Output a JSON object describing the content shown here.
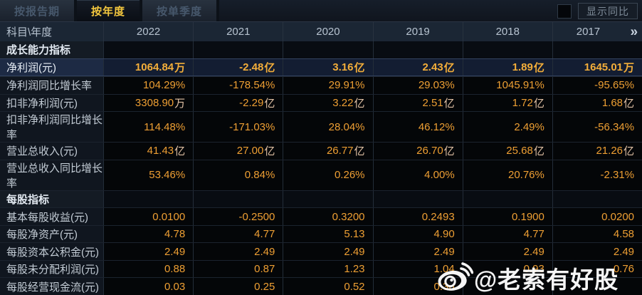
{
  "tabs": {
    "report_period": "按报告期",
    "annual": "按年度",
    "quarterly": "按单季度",
    "active": "annual"
  },
  "controls": {
    "show_yoy_label": "显示同比",
    "checkbox_checked": false
  },
  "table": {
    "corner_label": "科目\\年度",
    "years": [
      "2022",
      "2021",
      "2020",
      "2019",
      "2018",
      "2017"
    ],
    "more_icon_glyph": "»",
    "rows": [
      {
        "type": "section",
        "label": "成长能力指标",
        "values": [
          "",
          "",
          "",
          "",
          "",
          ""
        ]
      },
      {
        "type": "data",
        "highlighted": true,
        "label": "净利润(元)",
        "values": [
          "1064.84万",
          "-2.48亿",
          "3.16亿",
          "2.43亿",
          "1.89亿",
          "1645.01万"
        ]
      },
      {
        "type": "data",
        "label": "净利润同比增长率",
        "values": [
          "104.29%",
          "-178.54%",
          "29.91%",
          "29.03%",
          "1045.91%",
          "-95.65%"
        ]
      },
      {
        "type": "data",
        "label": "扣非净利润(元)",
        "values": [
          "3308.90万",
          "-2.29亿",
          "3.22亿",
          "2.51亿",
          "1.72亿",
          "1.68亿"
        ]
      },
      {
        "type": "data",
        "label": "扣非净利润同比增长率",
        "values": [
          "114.48%",
          "-171.03%",
          "28.04%",
          "46.12%",
          "2.49%",
          "-56.34%"
        ]
      },
      {
        "type": "data",
        "label": "营业总收入(元)",
        "values": [
          "41.43亿",
          "27.00亿",
          "26.77亿",
          "26.70亿",
          "25.68亿",
          "21.26亿"
        ]
      },
      {
        "type": "data",
        "label": "营业总收入同比增长率",
        "values": [
          "53.46%",
          "0.84%",
          "0.26%",
          "4.00%",
          "20.76%",
          "-2.31%"
        ]
      },
      {
        "type": "section",
        "label": "每股指标",
        "values": [
          "",
          "",
          "",
          "",
          "",
          ""
        ]
      },
      {
        "type": "data",
        "label": "基本每股收益(元)",
        "values": [
          "0.0100",
          "-0.2500",
          "0.3200",
          "0.2493",
          "0.1900",
          "0.0200"
        ]
      },
      {
        "type": "data",
        "label": "每股净资产(元)",
        "values": [
          "4.78",
          "4.77",
          "5.13",
          "4.90",
          "4.77",
          "4.58"
        ]
      },
      {
        "type": "data",
        "label": "每股资本公积金(元)",
        "values": [
          "2.49",
          "2.49",
          "2.49",
          "2.49",
          "2.49",
          "2.49"
        ]
      },
      {
        "type": "data",
        "label": "每股未分配利润(元)",
        "values": [
          "0.88",
          "0.87",
          "1.23",
          "1.04",
          "0.93",
          "0.76"
        ]
      },
      {
        "type": "data",
        "label": "每股经营现金流(元)",
        "values": [
          "0.03",
          "0.25",
          "0.52",
          "0.36",
          "",
          ""
        ]
      }
    ]
  },
  "watermark": {
    "text": "@老索有好股",
    "icon": "weibo-logo"
  },
  "colors": {
    "accent_gold": "#EE9F33",
    "highlight_gold": "#F3AE3A",
    "active_tab_text": "#F2C63E",
    "highlight_row_bg": "#131D32",
    "header_bg": "#1B2634"
  }
}
